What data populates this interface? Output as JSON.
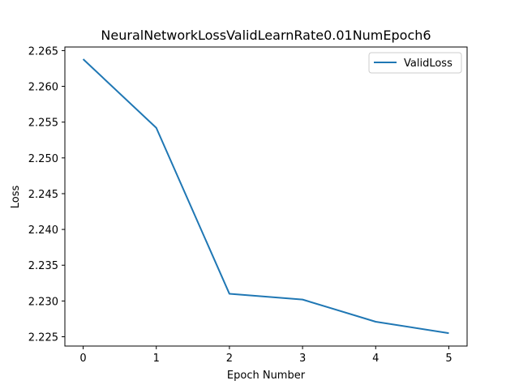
{
  "chart_data": {
    "type": "line",
    "title": "NeuralNetworkLossValidLearnRate0.01NumEpoch6",
    "xlabel": "Epoch Number",
    "ylabel": "Loss",
    "x": [
      0,
      1,
      2,
      3,
      4,
      5
    ],
    "x_ticks": [
      "0",
      "1",
      "2",
      "3",
      "4",
      "5"
    ],
    "xlim": [
      -0.25,
      5.25
    ],
    "y_ticks": [
      "2.225",
      "2.230",
      "2.235",
      "2.240",
      "2.245",
      "2.250",
      "2.255",
      "2.260",
      "2.265"
    ],
    "ylim": [
      2.2237,
      2.2655
    ],
    "grid": false,
    "legend_position": "top-right",
    "series": [
      {
        "name": "ValidLoss",
        "color": "#1f77b4",
        "values": [
          2.2638,
          2.2542,
          2.231,
          2.2302,
          2.2271,
          2.2255
        ]
      }
    ]
  }
}
